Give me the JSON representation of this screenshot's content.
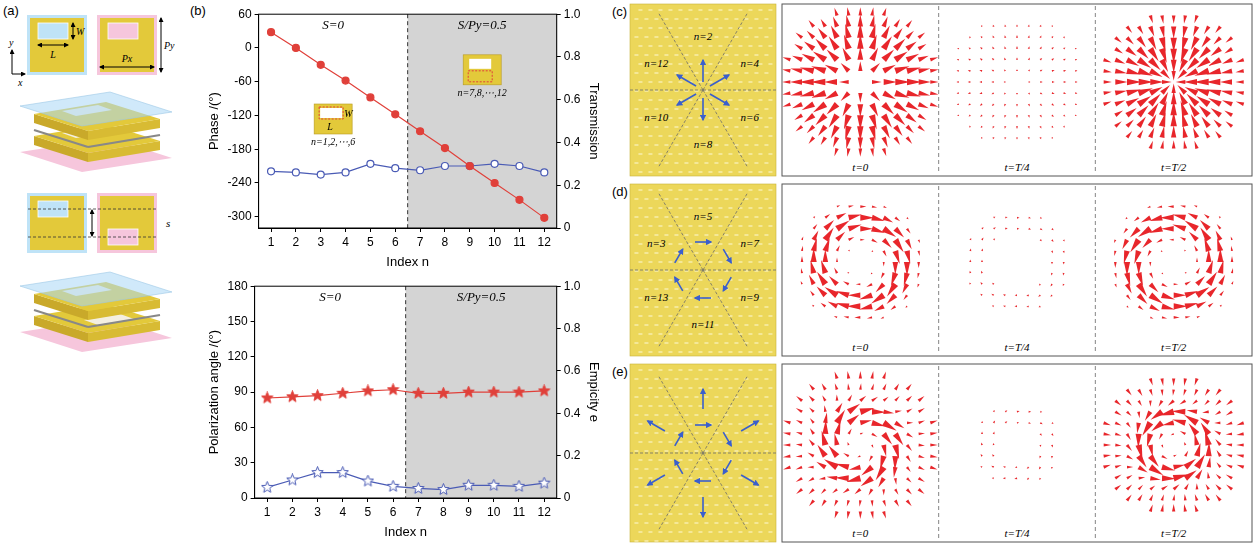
{
  "chart_data": [
    {
      "type": "line",
      "x_label": "Index n",
      "y_label": "Phase /(°)",
      "y2_label": "Transmission",
      "x": [
        1,
        2,
        3,
        4,
        5,
        6,
        7,
        8,
        9,
        10,
        11,
        12
      ],
      "xlim": [
        0.5,
        12.5
      ],
      "xticks": [
        1,
        2,
        3,
        4,
        5,
        6,
        7,
        8,
        9,
        10,
        11,
        12
      ],
      "ylim": [
        -320,
        60
      ],
      "yticks": [
        60,
        0,
        -60,
        -120,
        -180,
        -240,
        -300
      ],
      "y2lim": [
        0,
        1
      ],
      "y2ticks": [
        0,
        0.2,
        0.4,
        0.6,
        0.8,
        {
          "value": 1,
          "label": "1.0"
        }
      ],
      "grid": false,
      "series": [
        {
          "name": "Phase /(°)",
          "color": "#e0403a",
          "marker": "circle",
          "line_style": "solid",
          "values": [
            28,
            0,
            -30,
            -58,
            -88,
            -118,
            -148,
            -178,
            -210,
            -240,
            -270,
            -302
          ]
        },
        {
          "name": "Transmission",
          "color": "#4a5bb5",
          "marker": "circle_open",
          "line_style": "solid",
          "axis": "y2",
          "values": [
            0.265,
            0.26,
            0.25,
            0.26,
            0.3,
            0.28,
            0.27,
            0.29,
            0.29,
            0.3,
            0.29,
            0.26
          ]
        }
      ],
      "groups": [
        {
          "label": "S=0",
          "x": [
            1,
            2,
            3,
            4,
            5,
            6
          ],
          "inset": {
            "labels": [
              "W",
              "L"
            ],
            "caption": "n=1,2,⋯,6"
          }
        },
        {
          "label": "S/Py=0.5",
          "x": [
            7,
            8,
            9,
            10,
            11,
            12
          ],
          "color": "#d4d4d4",
          "inset": {
            "labels": [],
            "caption": "n=7,8,⋯,12"
          }
        }
      ]
    },
    {
      "type": "line",
      "x_label": "Index n",
      "y_label": "Polarization angle /(°)",
      "y2_label": "Empicity e",
      "x": [
        1,
        2,
        3,
        4,
        5,
        6,
        7,
        8,
        9,
        10,
        11,
        12
      ],
      "xlim": [
        0.5,
        12.5
      ],
      "xticks": [
        1,
        2,
        3,
        4,
        5,
        6,
        7,
        8,
        9,
        10,
        11,
        12
      ],
      "ylim": [
        0,
        180
      ],
      "yticks": [
        0,
        30,
        60,
        90,
        120,
        150,
        180
      ],
      "y2lim": [
        0,
        1
      ],
      "y2ticks": [
        0,
        0.2,
        0.4,
        0.6,
        0.8,
        {
          "value": 1,
          "label": "1.0"
        }
      ],
      "grid": false,
      "series": [
        {
          "name": "Polarization angle /(°)",
          "color": "#e0403a",
          "marker": "star",
          "line_style": "solid",
          "values": [
            85,
            86,
            87,
            89,
            91,
            92,
            89,
            89,
            90,
            90,
            90,
            91
          ]
        },
        {
          "name": "Empicity e",
          "color": "#4a5bb5",
          "marker": "star_open",
          "line_style": "solid",
          "axis": "y2",
          "values": [
            0.05,
            0.085,
            0.12,
            0.12,
            0.08,
            0.055,
            0.045,
            0.04,
            0.06,
            0.06,
            0.055,
            0.07
          ]
        }
      ],
      "groups": [
        {
          "label": "S=0",
          "x": [
            1,
            2,
            3,
            4,
            5,
            6
          ]
        },
        {
          "label": "S/Py=0.5",
          "x": [
            7,
            8,
            9,
            10,
            11,
            12
          ],
          "color": "#d4d4d4"
        }
      ]
    }
  ],
  "panels": {
    "a": {
      "letter": "(a)",
      "labels": {
        "width": "W",
        "length": "L",
        "period_y": "Py",
        "period_x": "Px",
        "axis_y": "y",
        "axis_x": "x",
        "shift": "s"
      }
    },
    "b": {
      "letter": "(b)"
    },
    "c": {
      "letter": "(c)",
      "field": "radial",
      "sector_labels": [
        "n=2",
        "n=4",
        "n=6",
        "n=8",
        "n=10",
        "n=12"
      ],
      "times": [
        "t=0",
        "t=T/4",
        "t=T/2"
      ]
    },
    "d": {
      "letter": "(d)",
      "field": "azimuthal",
      "sector_labels": [
        "n=5",
        "n=7",
        "n=9",
        "n=11",
        "n=13",
        "n=3"
      ],
      "times": [
        "t=0",
        "t=T/4",
        "t=T/2"
      ]
    },
    "e": {
      "letter": "(e)",
      "field": "mixed",
      "sector_labels": [],
      "times": [
        "t=0",
        "t=T/4",
        "t=T/2"
      ]
    }
  }
}
